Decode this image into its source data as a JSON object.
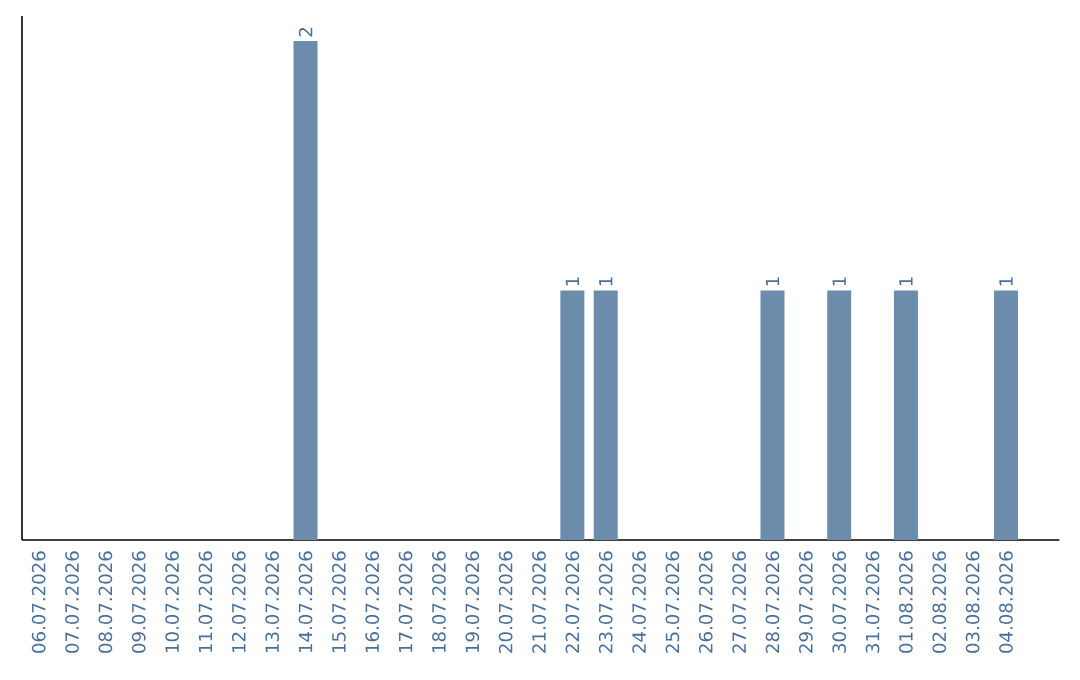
{
  "chart_data": {
    "type": "bar",
    "color": "#6b8cab",
    "categories": [
      "06.07.2026",
      "07.07.2026",
      "08.07.2026",
      "09.07.2026",
      "10.07.2026",
      "11.07.2026",
      "12.07.2026",
      "13.07.2026",
      "14.07.2026",
      "15.07.2026",
      "16.07.2026",
      "17.07.2026",
      "18.07.2026",
      "19.07.2026",
      "20.07.2026",
      "21.07.2026",
      "22.07.2026",
      "23.07.2026",
      "24.07.2026",
      "25.07.2026",
      "26.07.2026",
      "27.07.2026",
      "28.07.2026",
      "29.07.2026",
      "30.07.2026",
      "31.07.2026",
      "01.08.2026",
      "02.08.2026",
      "03.08.2026",
      "04.08.2026"
    ],
    "values": [
      0,
      0,
      0,
      0,
      0,
      0,
      0,
      0,
      2,
      0,
      0,
      0,
      0,
      0,
      0,
      0,
      1,
      1,
      0,
      0,
      0,
      0,
      1,
      0,
      1,
      0,
      1,
      0,
      0,
      1
    ],
    "value_labels": [
      null,
      null,
      null,
      null,
      null,
      null,
      null,
      null,
      "2",
      null,
      null,
      null,
      null,
      null,
      null,
      null,
      "1",
      "1",
      null,
      null,
      null,
      null,
      "1",
      null,
      "1",
      null,
      "1",
      null,
      null,
      "1"
    ],
    "grid": false
  }
}
